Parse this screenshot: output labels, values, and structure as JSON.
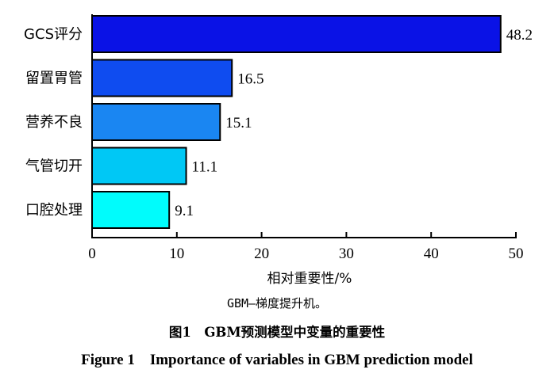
{
  "chart_data": {
    "type": "bar",
    "orientation": "horizontal",
    "categories": [
      "GCS评分",
      "留置胃管",
      "营养不良",
      "气管切开",
      "口腔处理"
    ],
    "values": [
      48.2,
      16.5,
      15.1,
      11.1,
      9.1
    ],
    "value_labels": [
      "48.2",
      "16.5",
      "15.1",
      "11.1",
      "9.1"
    ],
    "bar_colors": [
      "#0a12e6",
      "#0f4cf0",
      "#1a86f2",
      "#00c8f5",
      "#00fcfc"
    ],
    "xlabel": "相对重要性/%",
    "xlim": [
      0,
      50
    ],
    "xticks": [
      0,
      10,
      20,
      30,
      40,
      50
    ],
    "grid": false,
    "legend": "none"
  },
  "figure": {
    "note": "GBM—梯度提升机。",
    "caption_cn": "图1　GBM预测模型中变量的重要性",
    "caption_en": "Figure 1　Importance of variables in GBM prediction model"
  }
}
